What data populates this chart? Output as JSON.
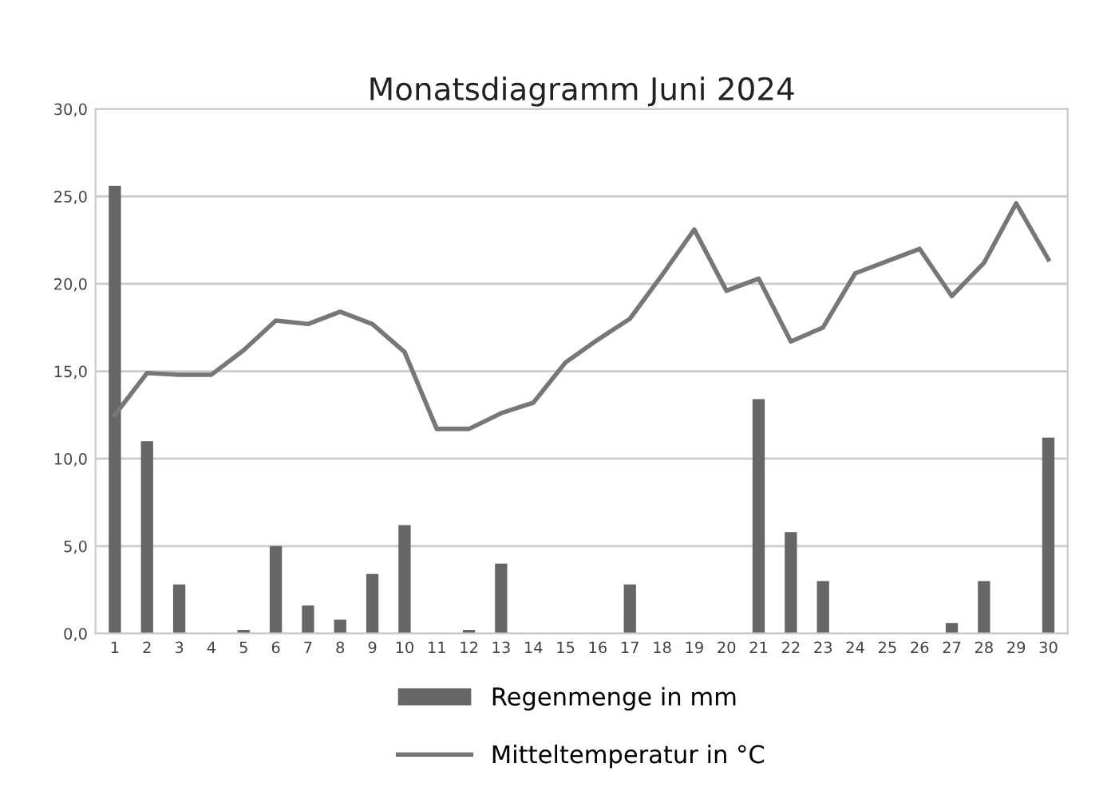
{
  "chart_data": {
    "type": "bar",
    "title": "Monatsdiagramm Juni 2024",
    "categories": [
      "1",
      "2",
      "3",
      "4",
      "5",
      "6",
      "7",
      "8",
      "9",
      "10",
      "11",
      "12",
      "13",
      "14",
      "15",
      "16",
      "17",
      "18",
      "19",
      "20",
      "21",
      "22",
      "23",
      "24",
      "25",
      "26",
      "27",
      "28",
      "29",
      "30"
    ],
    "series": [
      {
        "name": "Regenmenge in mm",
        "color": "#666666",
        "values": [
          25.6,
          11.0,
          2.8,
          0,
          0.2,
          5.0,
          1.6,
          0.8,
          3.4,
          6.2,
          0,
          0.2,
          4.0,
          0,
          0,
          0,
          2.8,
          0,
          0,
          0,
          13.4,
          5.8,
          3.0,
          0,
          0,
          0,
          0.6,
          3.0,
          0,
          11.2
        ]
      },
      {
        "name": "Mitteltemperatur in °C",
        "type": "line",
        "color": "#777777",
        "values": [
          12.5,
          14.9,
          14.8,
          14.8,
          16.2,
          17.9,
          17.7,
          18.4,
          17.7,
          16.1,
          11.7,
          11.7,
          12.6,
          13.2,
          15.5,
          16.8,
          18.0,
          20.5,
          23.1,
          19.6,
          20.3,
          16.7,
          17.5,
          20.6,
          21.3,
          22.0,
          19.3,
          21.2,
          24.6,
          21.4
        ]
      }
    ],
    "ylim": [
      0,
      30
    ],
    "yticks": [
      {
        "value": 0,
        "label": "0,0"
      },
      {
        "value": 5,
        "label": "5,0"
      },
      {
        "value": 10,
        "label": "10,0"
      },
      {
        "value": 15,
        "label": "15,0"
      },
      {
        "value": 20,
        "label": "20,0"
      },
      {
        "value": 25,
        "label": "25,0"
      },
      {
        "value": 30,
        "label": "30,0"
      }
    ],
    "grid": "y",
    "legend": "bottom",
    "marker": "none",
    "line_style": "solid"
  }
}
